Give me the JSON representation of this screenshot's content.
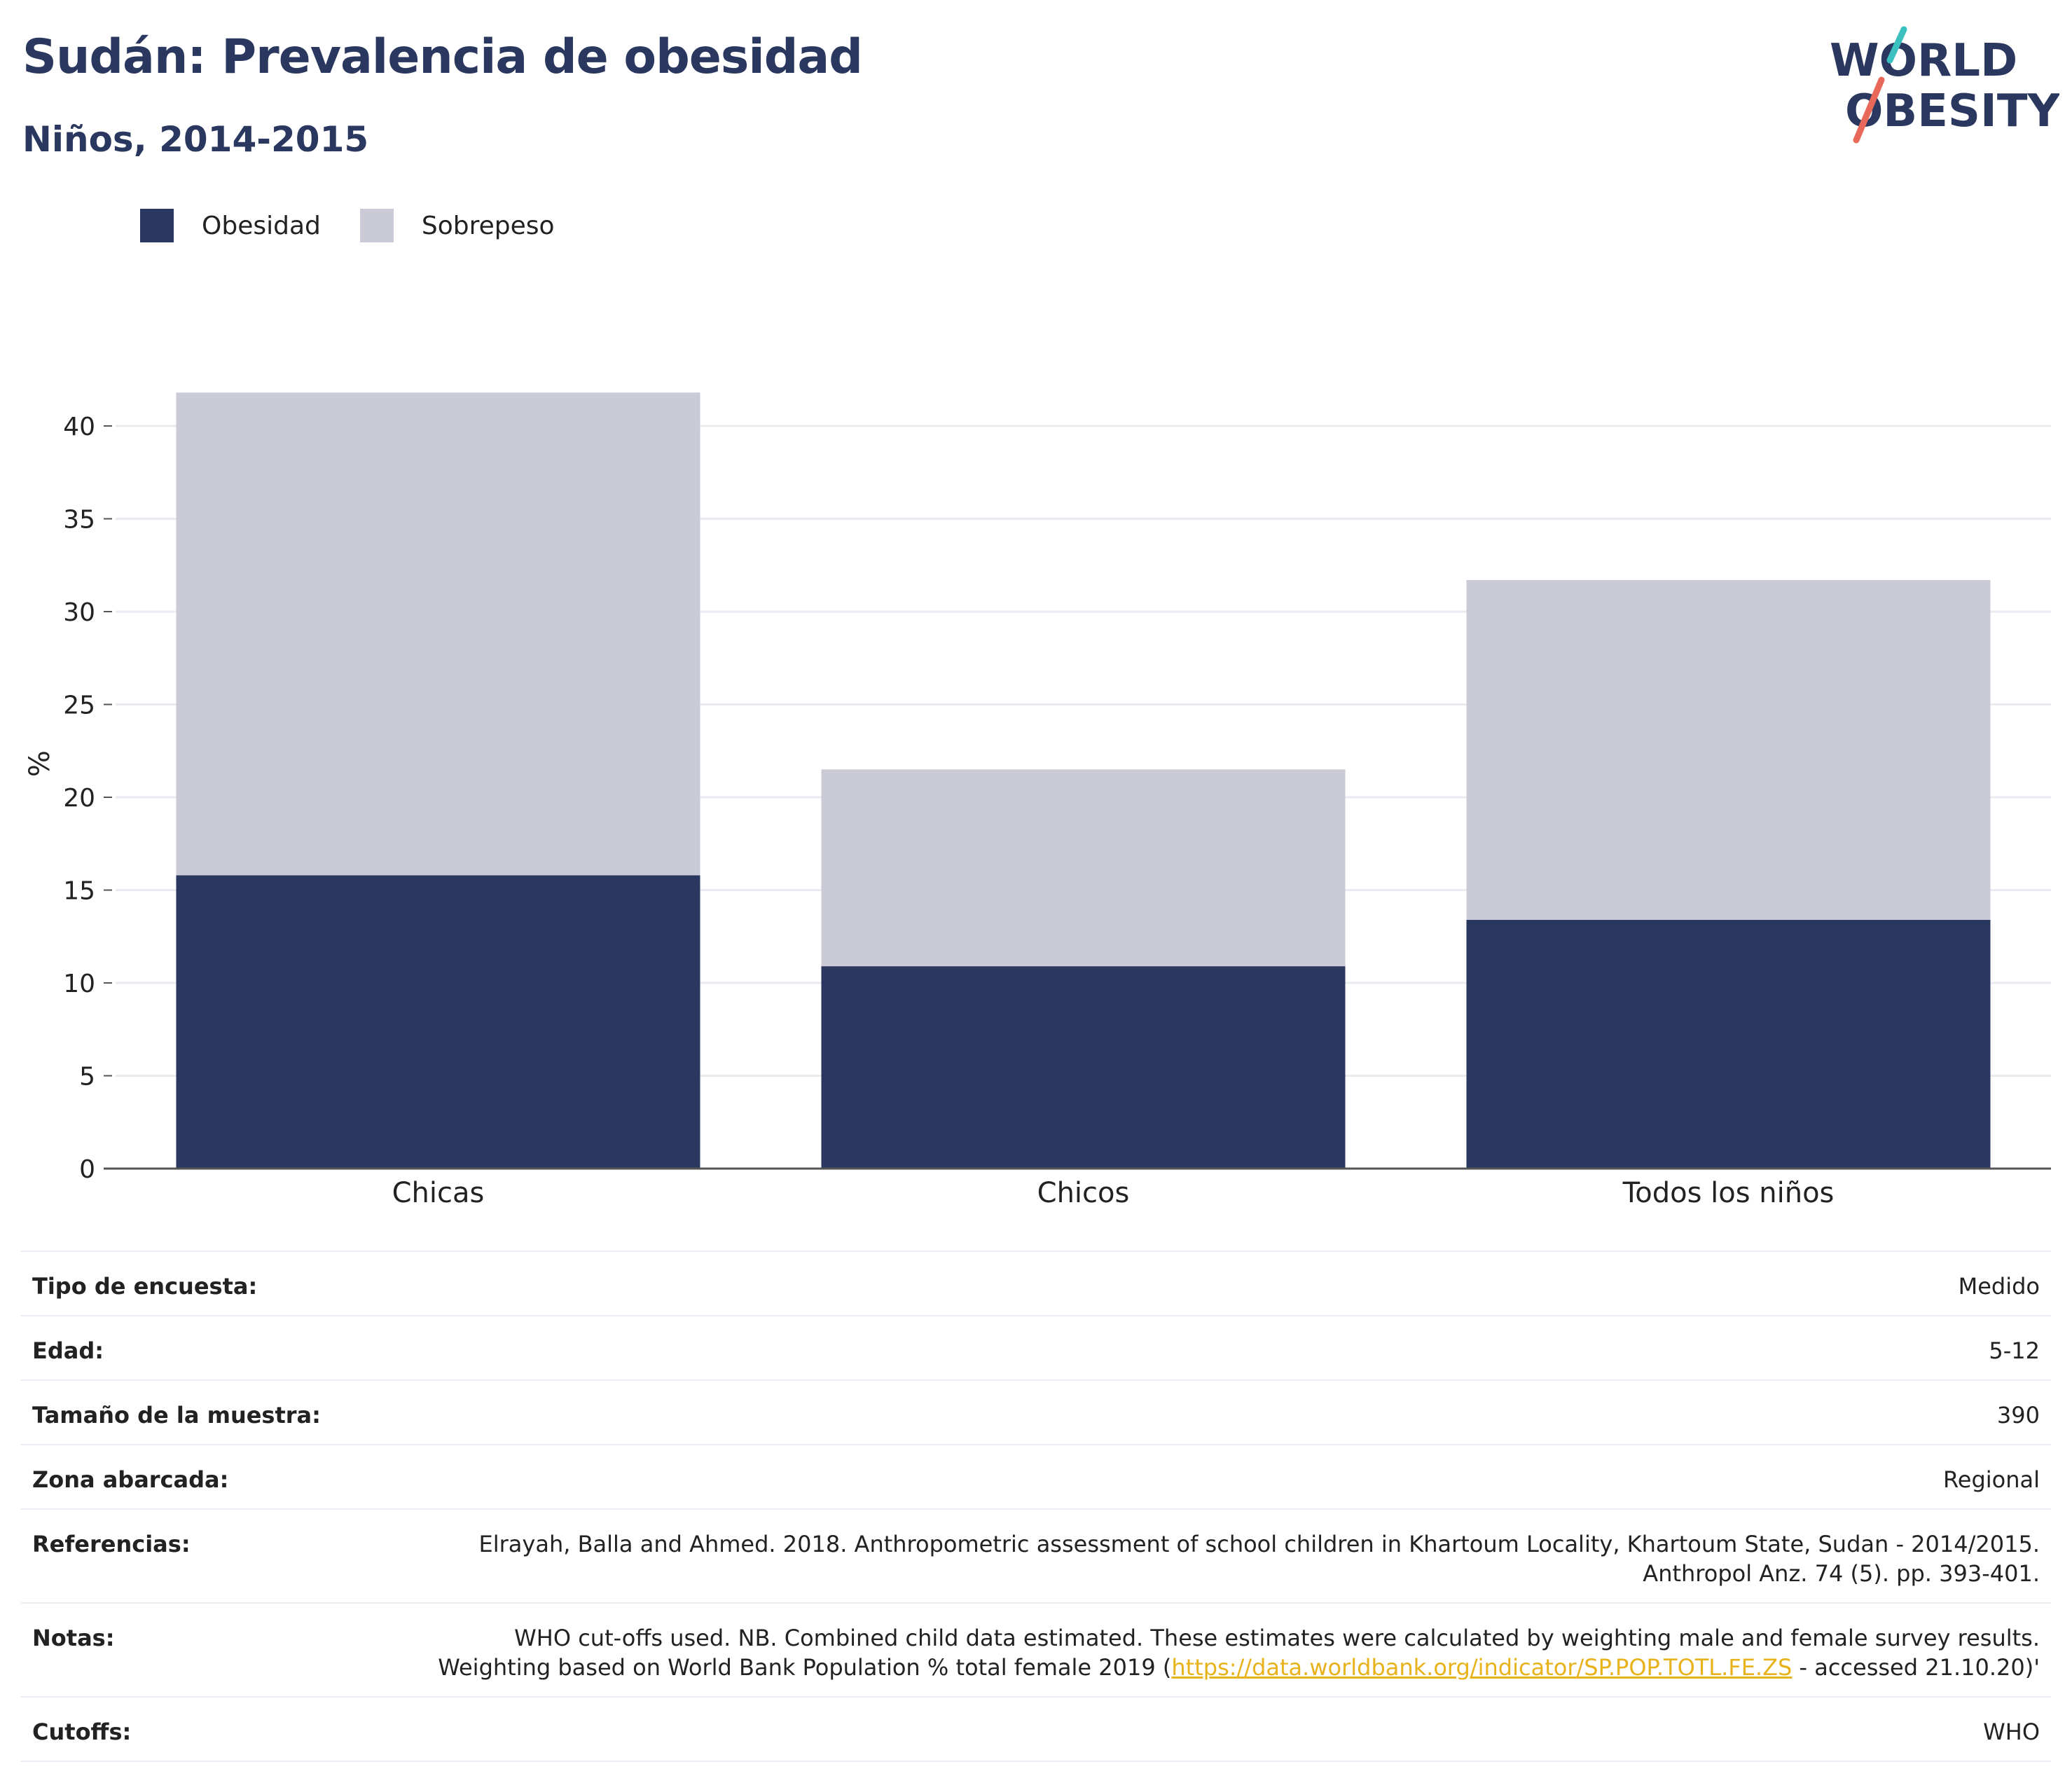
{
  "header": {
    "title": "Sudán: Prevalencia de obesidad",
    "subtitle": "Niños, 2014-2015"
  },
  "logo": {
    "line1": "WORLD",
    "line2": "OBESITY",
    "accent_colors": [
      "#3bbfbf",
      "#e8685a"
    ]
  },
  "colors": {
    "obesity": "#2a375e",
    "overweight": "#cacbd7",
    "grid": "#e9ebf1",
    "axis": "#555555",
    "link": "#e8b21a"
  },
  "chart_data": {
    "type": "bar",
    "stacked": true,
    "categories": [
      "Chicas",
      "Chicos",
      "Todos los niños"
    ],
    "series": [
      {
        "name": "Obesidad",
        "values": [
          15.8,
          10.9,
          13.4
        ]
      },
      {
        "name": "Sobrepeso",
        "values": [
          26.0,
          10.6,
          18.3
        ]
      }
    ],
    "totals": [
      41.8,
      21.5,
      31.7
    ],
    "ylabel": "%",
    "ylim": [
      0,
      42
    ],
    "yticks": [
      0,
      5,
      10,
      15,
      20,
      25,
      30,
      35,
      40
    ],
    "grid": true,
    "legend_position": "top-left"
  },
  "info": {
    "rows": [
      {
        "label": "Tipo de encuesta:",
        "value": "Medido"
      },
      {
        "label": "Edad:",
        "value": "5-12"
      },
      {
        "label": "Tamaño de la muestra:",
        "value": "390"
      },
      {
        "label": "Zona abarcada:",
        "value": "Regional"
      },
      {
        "label": "Referencias:",
        "value": "Elrayah, Balla and Ahmed. 2018. Anthropometric assessment of school children in Khartoum Locality, Khartoum State, Sudan - 2014/2015. Anthropol Anz. 74 (5). pp. 393-401."
      }
    ],
    "notes": {
      "label": "Notas:",
      "before": "WHO cut-offs used. NB. Combined child data estimated. These estimates were calculated by weighting male and female survey results. Weighting based on World Bank Population % total female 2019 (",
      "link": "https://data.worldbank.org/indicator/SP.POP.TOTL.FE.ZS",
      "after": " - accessed 21.10.20)'"
    },
    "cutoffs": {
      "label": "Cutoffs:",
      "value": "WHO"
    }
  }
}
